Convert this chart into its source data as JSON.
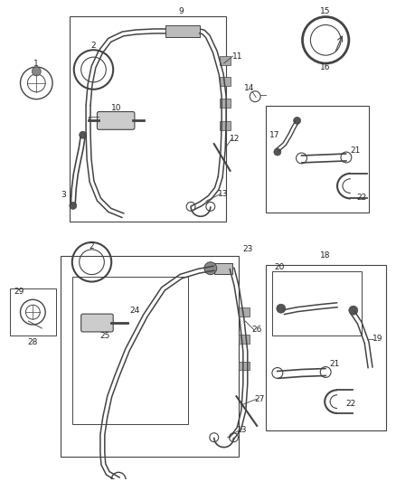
{
  "background_color": "#ffffff",
  "fig_width": 4.38,
  "fig_height": 5.33,
  "dpi": 100,
  "line_color": "#444444",
  "text_color": "#222222",
  "font_size": 6.5
}
